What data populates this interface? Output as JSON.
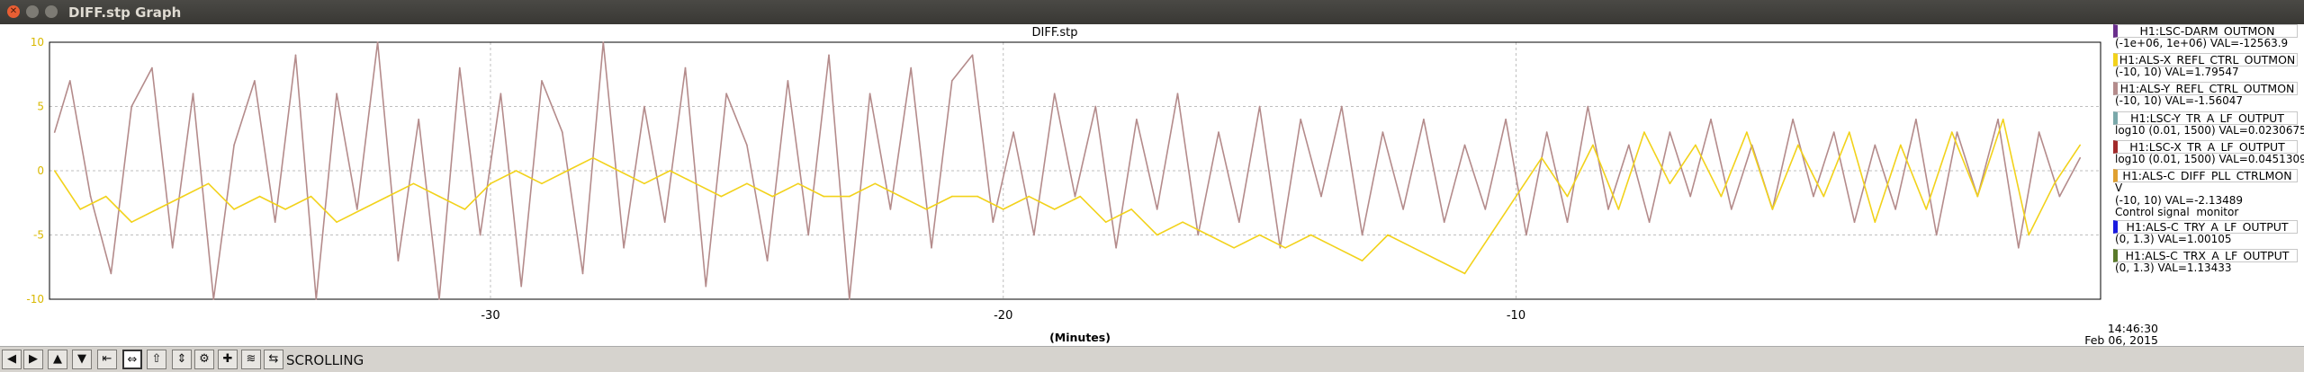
{
  "window": {
    "title": "DIFF.stp Graph"
  },
  "toolbar": {
    "buttons": [
      {
        "name": "scroll-left-button",
        "glyph": "◀"
      },
      {
        "name": "scroll-right-button",
        "glyph": "▶"
      },
      {
        "name": "scroll-up-button",
        "glyph": "▲"
      },
      {
        "name": "scroll-down-button",
        "glyph": "▼"
      },
      {
        "name": "zoom-in-x-button",
        "glyph": "⇤"
      },
      {
        "name": "zoom-out-x-button",
        "glyph": "⇔"
      },
      {
        "name": "zoom-in-y-button",
        "glyph": "⇧"
      },
      {
        "name": "zoom-out-y-button",
        "glyph": "⇕"
      },
      {
        "name": "settings-button",
        "glyph": "⚙"
      },
      {
        "name": "add-button",
        "glyph": "✚"
      },
      {
        "name": "autoscale-button",
        "glyph": "≋"
      },
      {
        "name": "scroll-mode-button",
        "glyph": "⇆"
      }
    ],
    "mode_label": "SCROLLING"
  },
  "legend": [
    {
      "name": "H1:LSC-DARM_OUTMON",
      "range": "(-1e+06, 1e+06) VAL=-12563.9",
      "color": "#6a2f8c"
    },
    {
      "name": "H1:ALS-X_REFL_CTRL_OUTMON",
      "range": "(-10, 10) VAL=1.79547",
      "color": "#f2d21b"
    },
    {
      "name": "H1:ALS-Y_REFL_CTRL_OUTMON",
      "range": "(-10, 10) VAL=-1.56047",
      "color": "#b48b8b"
    },
    {
      "name": "H1:LSC-Y_TR_A_LF_OUTPUT",
      "range": "log10 (0.01, 1500) VAL=0.0230675",
      "color": "#7aa8aa"
    },
    {
      "name": "H1:LSC-X_TR_A_LF_OUTPUT",
      "range": "log10 (0.01, 1500) VAL=0.0451309",
      "color": "#a22a2a"
    },
    {
      "name": "H1:ALS-C_DIFF_PLL_CTRLMON",
      "range": "V\n(-10, 10) VAL=-2.13489\nControl signal  monitor",
      "color": "#e0a030"
    },
    {
      "name": "H1:ALS-C_TRY_A_LF_OUTPUT",
      "range": "(0, 1.3) VAL=1.00105",
      "color": "#1a1ae0"
    },
    {
      "name": "H1:ALS-C_TRX_A_LF_OUTPUT",
      "range": "(0, 1.3) VAL=1.13433",
      "color": "#5a7a2a"
    }
  ],
  "chart_data": {
    "type": "line",
    "title": "DIFF.stp",
    "xlabel": "(Minutes)",
    "xlim": [
      -38.6,
      1.4
    ],
    "ylim": [
      -10,
      10
    ],
    "x_ticks": [
      -30,
      -20,
      -10
    ],
    "x_tick_labels": [
      "-30",
      "-20",
      "-10"
    ],
    "y_ticks": [
      10,
      5,
      0,
      -5,
      -10
    ],
    "y_tick_labels": [
      "10",
      "5",
      "0",
      "-5",
      "-10"
    ],
    "grid": true,
    "end_time": "14:46:30",
    "end_date": "Feb 06, 2015",
    "series": [
      {
        "name": "H1:ALS-Y_REFL_CTRL_OUTMON",
        "color": "#b48b8b",
        "x": [
          -38.5,
          -38.2,
          -37.8,
          -37.4,
          -37.0,
          -36.6,
          -36.2,
          -35.8,
          -35.4,
          -35.0,
          -34.6,
          -34.2,
          -33.8,
          -33.4,
          -33.0,
          -32.6,
          -32.2,
          -31.8,
          -31.4,
          -31.0,
          -30.6,
          -30.2,
          -29.8,
          -29.4,
          -29.0,
          -28.6,
          -28.2,
          -27.8,
          -27.4,
          -27.0,
          -26.6,
          -26.2,
          -25.8,
          -25.4,
          -25.0,
          -24.6,
          -24.2,
          -23.8,
          -23.4,
          -23.0,
          -22.6,
          -22.2,
          -21.8,
          -21.4,
          -21.0,
          -20.6,
          -20.2,
          -19.8,
          -19.4,
          -19.0,
          -18.6,
          -18.2,
          -17.8,
          -17.4,
          -17.0,
          -16.6,
          -16.2,
          -15.8,
          -15.4,
          -15.0,
          -14.6,
          -14.2,
          -13.8,
          -13.4,
          -13.0,
          -12.6,
          -12.2,
          -11.8,
          -11.4,
          -11.0,
          -10.6,
          -10.2,
          -9.8,
          -9.4,
          -9.0,
          -8.6,
          -8.2,
          -7.8,
          -7.4,
          -7.0,
          -6.6,
          -6.2,
          -5.8,
          -5.4,
          -5.0,
          -4.6,
          -4.2,
          -3.8,
          -3.4,
          -3.0,
          -2.6,
          -2.2,
          -1.8,
          -1.4,
          -1.0,
          -0.6,
          -0.2,
          0.2,
          0.6,
          1.0
        ],
        "y": [
          3,
          7,
          -2,
          -8,
          5,
          8,
          -6,
          6,
          -10,
          2,
          7,
          -4,
          9,
          -10,
          6,
          -3,
          10,
          -7,
          4,
          -10,
          8,
          -5,
          6,
          -9,
          7,
          3,
          -8,
          10,
          -6,
          5,
          -4,
          8,
          -9,
          6,
          2,
          -7,
          7,
          -5,
          9,
          -10,
          6,
          -3,
          8,
          -6,
          7,
          9,
          -4,
          3,
          -5,
          6,
          -2,
          5,
          -6,
          4,
          -3,
          6,
          -5,
          3,
          -4,
          5,
          -6,
          4,
          -2,
          5,
          -5,
          3,
          -3,
          4,
          -4,
          2,
          -3,
          4,
          -5,
          3,
          -4,
          5,
          -3,
          2,
          -4,
          3,
          -2,
          4,
          -3,
          2,
          -3,
          4,
          -2,
          3,
          -4,
          2,
          -3,
          4,
          -5,
          3,
          -2,
          4,
          -6,
          3,
          -2,
          1
        ]
      },
      {
        "name": "H1:ALS-X_REFL_CTRL_OUTMON",
        "color": "#f2d21b",
        "x": [
          -38.5,
          -38.0,
          -37.5,
          -37.0,
          -36.5,
          -36.0,
          -35.5,
          -35.0,
          -34.5,
          -34.0,
          -33.5,
          -33.0,
          -32.5,
          -32.0,
          -31.5,
          -31.0,
          -30.5,
          -30.0,
          -29.5,
          -29.0,
          -28.5,
          -28.0,
          -27.5,
          -27.0,
          -26.5,
          -26.0,
          -25.5,
          -25.0,
          -24.5,
          -24.0,
          -23.5,
          -23.0,
          -22.5,
          -22.0,
          -21.5,
          -21.0,
          -20.5,
          -20.0,
          -19.5,
          -19.0,
          -18.5,
          -18.0,
          -17.5,
          -17.0,
          -16.5,
          -16.0,
          -15.5,
          -15.0,
          -14.5,
          -14.0,
          -13.5,
          -13.0,
          -12.5,
          -12.0,
          -11.5,
          -11.0,
          -10.5,
          -10.0,
          -9.5,
          -9.0,
          -8.5,
          -8.0,
          -7.5,
          -7.0,
          -6.5,
          -6.0,
          -5.5,
          -5.0,
          -4.5,
          -4.0,
          -3.5,
          -3.0,
          -2.5,
          -2.0,
          -1.5,
          -1.0,
          -0.5,
          0.0,
          0.5,
          1.0
        ],
        "y": [
          0,
          -3,
          -2,
          -4,
          -3,
          -2,
          -1,
          -3,
          -2,
          -3,
          -2,
          -4,
          -3,
          -2,
          -1,
          -2,
          -3,
          -1,
          0,
          -1,
          0,
          1,
          0,
          -1,
          0,
          -1,
          -2,
          -1,
          -2,
          -1,
          -2,
          -2,
          -1,
          -2,
          -3,
          -2,
          -2,
          -3,
          -2,
          -3,
          -2,
          -4,
          -3,
          -5,
          -4,
          -5,
          -6,
          -5,
          -6,
          -5,
          -6,
          -7,
          -5,
          -6,
          -7,
          -8,
          -5,
          -2,
          1,
          -2,
          2,
          -3,
          3,
          -1,
          2,
          -2,
          3,
          -3,
          2,
          -2,
          3,
          -4,
          2,
          -3,
          3,
          -2,
          4,
          -5,
          -1,
          2
        ]
      }
    ]
  }
}
